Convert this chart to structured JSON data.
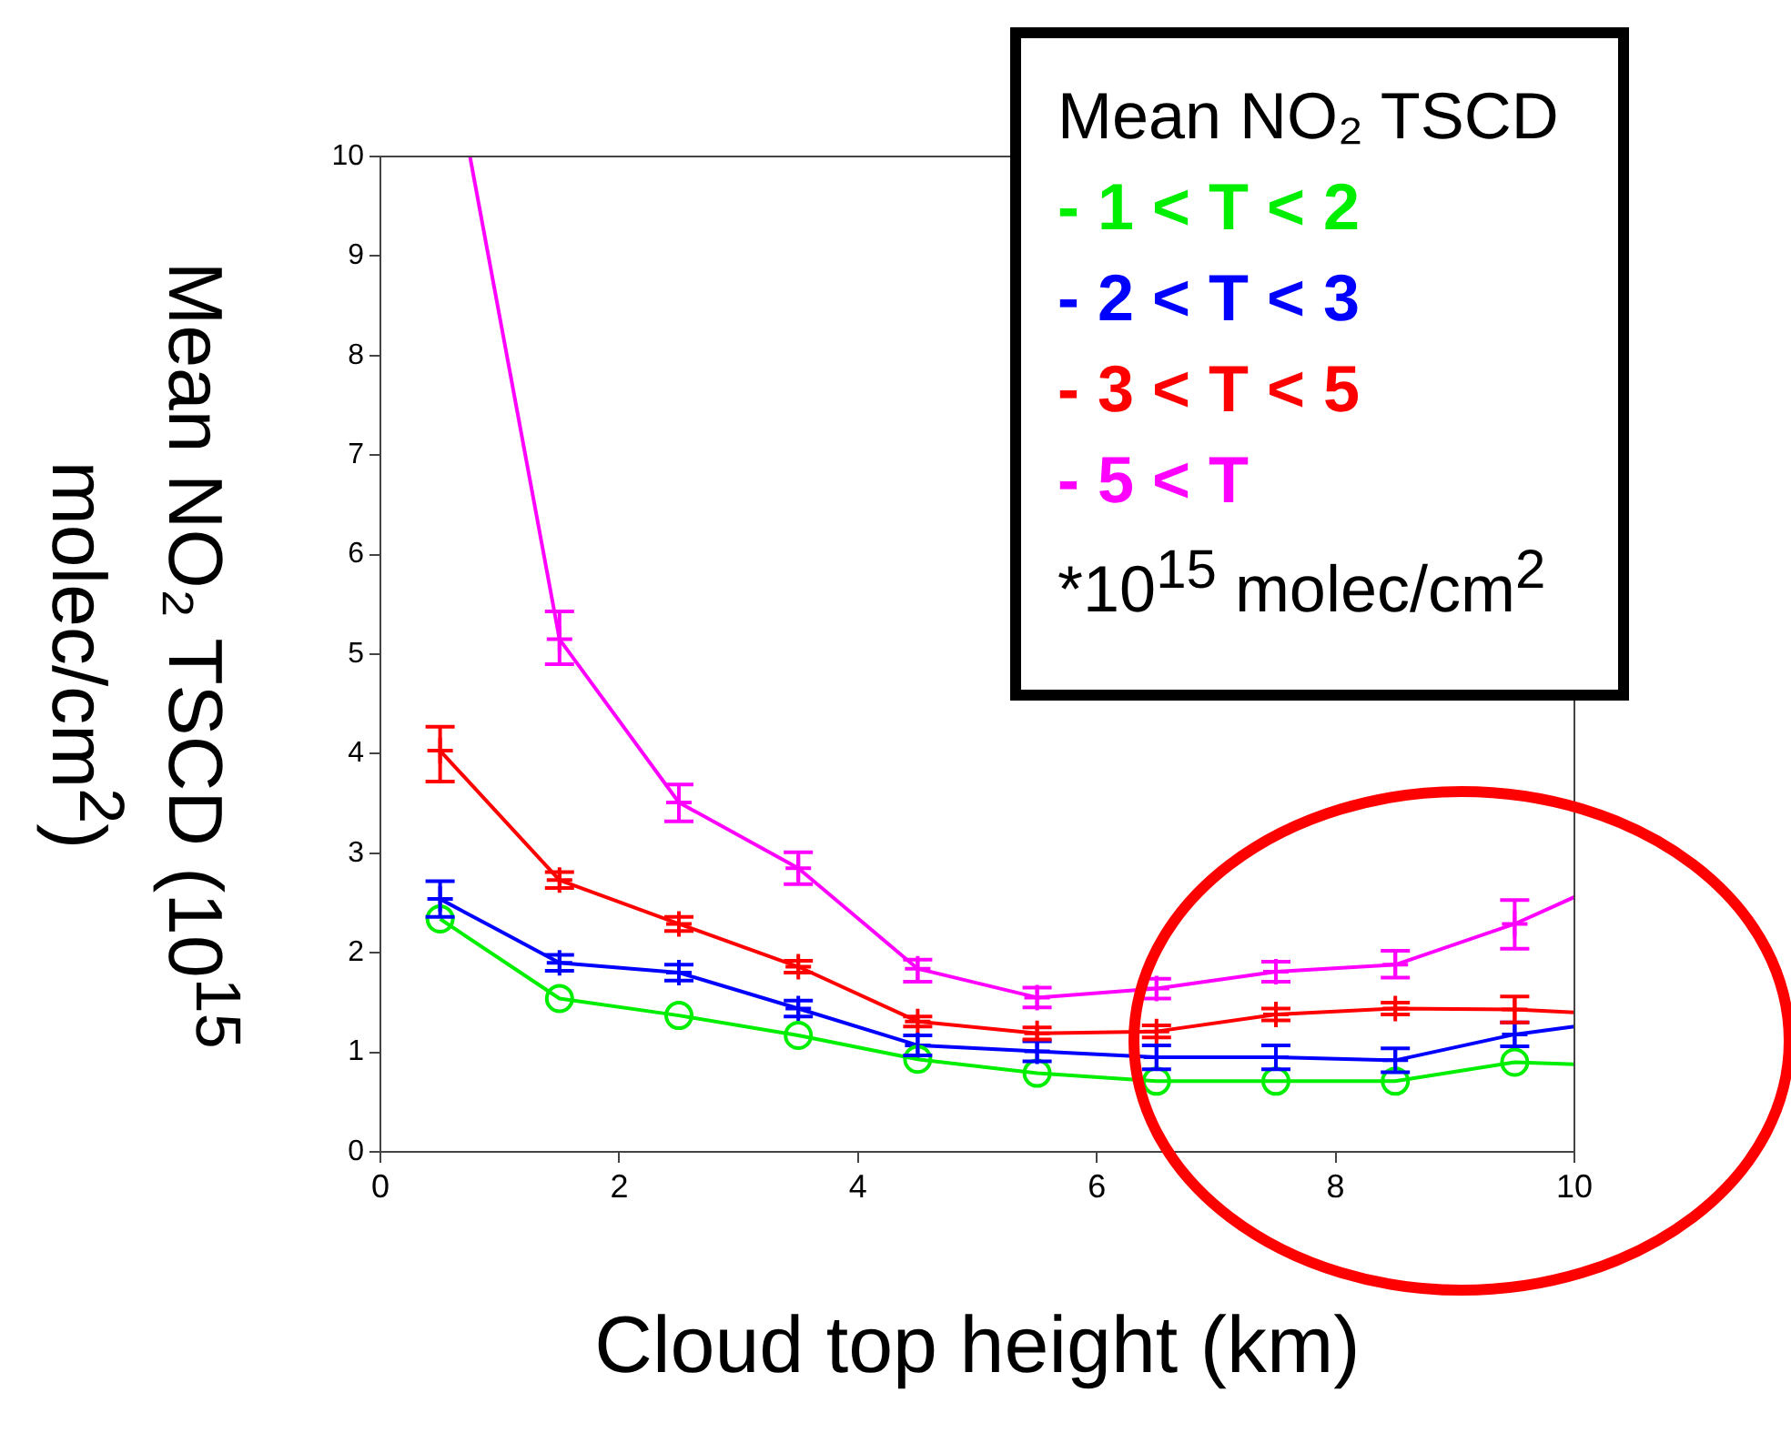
{
  "chart_data": {
    "type": "line",
    "xlabel": "Cloud top height (km)",
    "ylabel": "Mean NO₂ TSCD (10$^{15}$ molec/cm$^{2}$)",
    "legend_title": "Mean NO₂ TSCD",
    "legend": "top right",
    "grid": false,
    "xlim": [
      0,
      10
    ],
    "xticks": [
      0,
      2,
      4,
      6,
      8,
      10
    ],
    "ylim": [
      0,
      10
    ],
    "yticks": [
      0,
      1,
      2,
      3,
      4,
      5,
      6,
      7,
      8,
      9,
      10
    ],
    "annotations": [
      "*10$^{15}$ molec/cm$^{2}$"
    ],
    "series": [
      {
        "name": "- 1 < T < 2",
        "color": "#00ee00",
        "marker": "circle",
        "x": [
          0.5,
          1.5,
          2.5,
          3.5,
          4.5,
          5.5,
          6.5,
          7.5,
          8.5,
          9.5,
          10
        ],
        "values": [
          2.34,
          1.54,
          1.37,
          1.17,
          0.93,
          0.79,
          0.71,
          0.71,
          0.71,
          0.9,
          0.88
        ]
      },
      {
        "name": "- 2 < T < 3",
        "color": "#0000ff",
        "marker": "cross",
        "x": [
          0.5,
          1.5,
          2.5,
          3.5,
          4.5,
          5.5,
          6.5,
          7.5,
          8.5,
          9.5,
          10
        ],
        "values": [
          2.54,
          1.9,
          1.8,
          1.44,
          1.07,
          1.01,
          0.95,
          0.95,
          0.92,
          1.18,
          1.26
        ],
        "errors": [
          0.18,
          0.08,
          0.08,
          0.08,
          0.1,
          0.1,
          0.12,
          0.12,
          0.12,
          0.12,
          null
        ]
      },
      {
        "name": "- 3 < T < 5",
        "color": "#ff0000",
        "marker": "cross",
        "x": [
          0.5,
          1.5,
          2.5,
          3.5,
          4.5,
          5.5,
          6.5,
          7.5,
          8.5,
          9.5,
          10
        ],
        "values": [
          4.03,
          2.73,
          2.29,
          1.86,
          1.31,
          1.19,
          1.21,
          1.38,
          1.44,
          1.43,
          1.4
        ],
        "errors": [
          [
            3.72,
            4.27
          ],
          0.08,
          0.07,
          0.06,
          0.05,
          0.06,
          0.06,
          0.06,
          0.06,
          [
            1.3,
            1.56
          ],
          null
        ]
      },
      {
        "name": "- 5 < T",
        "color": "#ff00ff",
        "marker": "cross",
        "x": [
          0.75,
          1.5,
          2.5,
          3.5,
          4.5,
          5.5,
          6.5,
          7.5,
          8.5,
          9.5,
          10
        ],
        "values": [
          10,
          5.15,
          3.51,
          2.85,
          1.84,
          1.55,
          1.64,
          1.81,
          1.88,
          2.29,
          2.56
        ],
        "errors": [
          null,
          [
            4.9,
            5.43
          ],
          [
            3.32,
            3.69
          ],
          [
            2.69,
            3.01
          ],
          [
            1.71,
            1.93
          ],
          0.1,
          0.1,
          0.1,
          [
            1.75,
            2.02
          ],
          [
            2.04,
            2.53
          ],
          null
        ]
      }
    ]
  }
}
